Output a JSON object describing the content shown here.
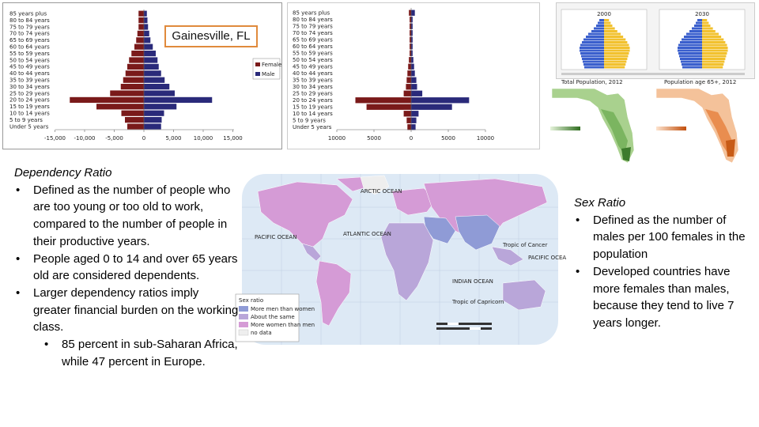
{
  "gainesville_label": "Gainesville, FL",
  "pyramid_left": {
    "age_groups": [
      "85 years plus",
      "80 to 84 years",
      "75 to 79 years",
      "70 to 74 years",
      "65 to 69 years",
      "60 to 64 years",
      "55 to 59 years",
      "50 to 54 years",
      "45 to 49 years",
      "40 to 44 years",
      "35 to 39 years",
      "30 to 34 years",
      "25 to 29 years",
      "20 to 24 years",
      "15 to 19 years",
      "10 to 14 years",
      "5 to 9 years",
      "Under 5 years"
    ],
    "male": [
      500,
      600,
      700,
      900,
      1100,
      1500,
      2000,
      2300,
      2500,
      2900,
      3500,
      4300,
      5200,
      11500,
      5500,
      3400,
      3000,
      2900
    ],
    "female": [
      900,
      900,
      900,
      1100,
      1300,
      1600,
      2100,
      2500,
      2800,
      3100,
      3500,
      3900,
      5700,
      12500,
      8000,
      3800,
      3200,
      2800
    ],
    "x_ticks": [
      "-15,000",
      "-10,000",
      "-5,000",
      "0",
      "5,000",
      "10,000",
      "15,000"
    ],
    "legend": [
      "Female",
      "Male"
    ],
    "colors": {
      "female": "#7a1a1a",
      "male": "#2a2a7a"
    }
  },
  "pyramid_right": {
    "age_groups": [
      "85 years plus",
      "80 to 84 years",
      "75 to 79 years",
      "70 to 74 years",
      "65 to 69 years",
      "60 to 64 years",
      "55 to 59 years",
      "50 to 54 years",
      "45 to 49 years",
      "40 to 44 years",
      "35 to 39 years",
      "30 to 34 years",
      "25 to 29 years",
      "20 to 24 years",
      "15 to 19 years",
      "10 to 14 years",
      "5 to 9 years",
      "Under 5 years"
    ],
    "male": [
      500,
      200,
      200,
      200,
      200,
      200,
      200,
      300,
      400,
      500,
      700,
      800,
      1500,
      7800,
      5500,
      1000,
      700,
      600
    ],
    "female": [
      300,
      200,
      200,
      200,
      200,
      200,
      200,
      300,
      400,
      500,
      600,
      700,
      1000,
      7500,
      6000,
      1000,
      600,
      500
    ],
    "x_ticks": [
      "10000",
      "5000",
      "0",
      "5000",
      "10000"
    ]
  },
  "dependency": {
    "heading": "Dependency Ratio",
    "bullets": [
      "Defined as the number of people who are too young or too old to work, compared to the number of people in their productive years.",
      "People aged 0 to 14 and over 65 years old are considered dependents.",
      "Larger dependency ratios imply greater financial burden on the working class."
    ],
    "sub_bullet": "85 percent in sub-Saharan Africa, while 47 percent in Europe."
  },
  "sex_ratio": {
    "heading": "Sex Ratio",
    "bullets": [
      "Defined as the number of males per 100 females in the population",
      "Developed countries have more females than males, because they tend to live 7 years longer."
    ]
  },
  "map": {
    "ocean_labels": [
      "ARCTIC OCEAN",
      "ATLANTIC OCEAN",
      "PACIFIC OCEAN",
      "PACIFIC OCEAN",
      "INDIAN OCEAN"
    ],
    "legend_title": "Sex ratio",
    "legend_items": [
      "More men than women",
      "About the same",
      "More women than men",
      "no data"
    ],
    "legend_colors": [
      "#8f9bd6",
      "#b9a6d9",
      "#d59bd6",
      "#eeeeee"
    ],
    "ocean_color": "#dde9f5",
    "tropic_labels": [
      "Tropic of Cancer",
      "Tropic of Capricorn"
    ]
  },
  "florida_maps": {
    "left_title": "Total Population, 2012",
    "right_title": "Population age 65+, 2012",
    "left_color": "#6fae55",
    "right_color": "#e6803c"
  },
  "small_pyramid": {
    "years": [
      "2000",
      "2030"
    ]
  }
}
